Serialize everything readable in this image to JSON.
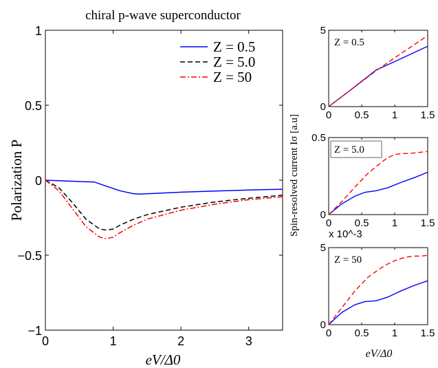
{
  "chart_data": [
    {
      "type": "line",
      "title": "chiral p-wave superconductor",
      "xlabel": "eV/Δ0",
      "ylabel": "Polarization P",
      "xlim": [
        0,
        3.5
      ],
      "ylim": [
        -1,
        1
      ],
      "xticks": [
        "0",
        "1",
        "2",
        "3"
      ],
      "yticks": [
        "1",
        "0.5",
        "0",
        "−0.5",
        "−1"
      ],
      "legend_position": "top-right",
      "series": [
        {
          "name": "Z = 0.5",
          "color": "#0000ff",
          "style": "solid",
          "x": [
            0,
            0.3,
            0.6,
            0.72,
            0.9,
            1.1,
            1.3,
            1.4,
            1.6,
            2.0,
            2.5,
            3.0,
            3.5
          ],
          "y": [
            0,
            -0.005,
            -0.01,
            -0.012,
            -0.04,
            -0.07,
            -0.09,
            -0.092,
            -0.088,
            -0.08,
            -0.072,
            -0.065,
            -0.06
          ]
        },
        {
          "name": "Z = 5.0",
          "color": "#000000",
          "style": "dashed",
          "x": [
            0,
            0.2,
            0.4,
            0.6,
            0.8,
            0.9,
            1.0,
            1.1,
            1.3,
            1.5,
            2.0,
            2.5,
            3.0,
            3.5
          ],
          "y": [
            0,
            -0.05,
            -0.15,
            -0.26,
            -0.325,
            -0.333,
            -0.325,
            -0.3,
            -0.26,
            -0.23,
            -0.18,
            -0.145,
            -0.12,
            -0.1
          ]
        },
        {
          "name": "Z = 50",
          "color": "#ff0000",
          "style": "dashdot",
          "x": [
            0,
            0.2,
            0.4,
            0.6,
            0.8,
            0.9,
            1.0,
            1.1,
            1.3,
            1.5,
            2.0,
            2.5,
            3.0,
            3.5
          ],
          "y": [
            0,
            -0.07,
            -0.19,
            -0.31,
            -0.38,
            -0.39,
            -0.38,
            -0.35,
            -0.3,
            -0.26,
            -0.2,
            -0.16,
            -0.13,
            -0.11
          ]
        }
      ]
    },
    {
      "type": "line",
      "annotation": "Z = 0.5",
      "xlim": [
        0,
        1.5
      ],
      "ylim": [
        0,
        5
      ],
      "xticks": [
        "0",
        "0.5",
        "1",
        "1.5"
      ],
      "yticks": [
        "5",
        "0"
      ],
      "series": [
        {
          "color": "#0000ff",
          "style": "solid",
          "x": [
            0,
            0.35,
            0.72,
            1.0,
            1.5
          ],
          "y": [
            0,
            1.15,
            2.4,
            2.95,
            3.95
          ]
        },
        {
          "color": "#ff0000",
          "style": "dashed",
          "x": [
            0,
            0.35,
            0.72,
            1.0,
            1.5
          ],
          "y": [
            0,
            1.15,
            2.35,
            3.2,
            4.65
          ]
        }
      ]
    },
    {
      "type": "line",
      "annotation": "Z = 5.0",
      "ylabel": "Spin-resolved current Iσ [a.u]",
      "xlim": [
        0,
        1.5
      ],
      "ylim": [
        0,
        0.5
      ],
      "xticks": [
        "0",
        "0.5",
        "1",
        "1.5"
      ],
      "yticks": [
        "0.5",
        "0"
      ],
      "series": [
        {
          "color": "#0000ff",
          "style": "solid",
          "x": [
            0,
            0.2,
            0.4,
            0.55,
            0.72,
            0.9,
            1.1,
            1.3,
            1.5
          ],
          "y": [
            0,
            0.07,
            0.12,
            0.145,
            0.155,
            0.175,
            0.21,
            0.24,
            0.275
          ]
        },
        {
          "color": "#ff0000",
          "style": "dashed",
          "x": [
            0,
            0.2,
            0.4,
            0.6,
            0.8,
            0.9,
            1.0,
            1.1,
            1.3,
            1.5
          ],
          "y": [
            0,
            0.085,
            0.18,
            0.27,
            0.34,
            0.37,
            0.39,
            0.395,
            0.4,
            0.41
          ]
        }
      ]
    },
    {
      "type": "line",
      "annotation": "Z = 50",
      "scale_label": "x 10^-3",
      "xlabel": "eV/Δ0",
      "xlim": [
        0,
        1.5
      ],
      "ylim": [
        0,
        5
      ],
      "xticks": [
        "0",
        "0.5",
        "1",
        "1.5"
      ],
      "yticks": [
        "5",
        "0"
      ],
      "series": [
        {
          "color": "#0000ff",
          "style": "solid",
          "x": [
            0,
            0.2,
            0.4,
            0.55,
            0.72,
            0.9,
            1.1,
            1.3,
            1.5
          ],
          "y": [
            0,
            0.8,
            1.3,
            1.5,
            1.55,
            1.8,
            2.2,
            2.55,
            2.85
          ]
        },
        {
          "color": "#ff0000",
          "style": "dashed",
          "x": [
            0,
            0.2,
            0.4,
            0.6,
            0.8,
            0.9,
            1.0,
            1.1,
            1.2,
            1.3,
            1.4,
            1.5
          ],
          "y": [
            0,
            1.1,
            2.2,
            3.1,
            3.7,
            3.95,
            4.15,
            4.3,
            4.4,
            4.45,
            4.45,
            4.5
          ]
        }
      ]
    }
  ]
}
